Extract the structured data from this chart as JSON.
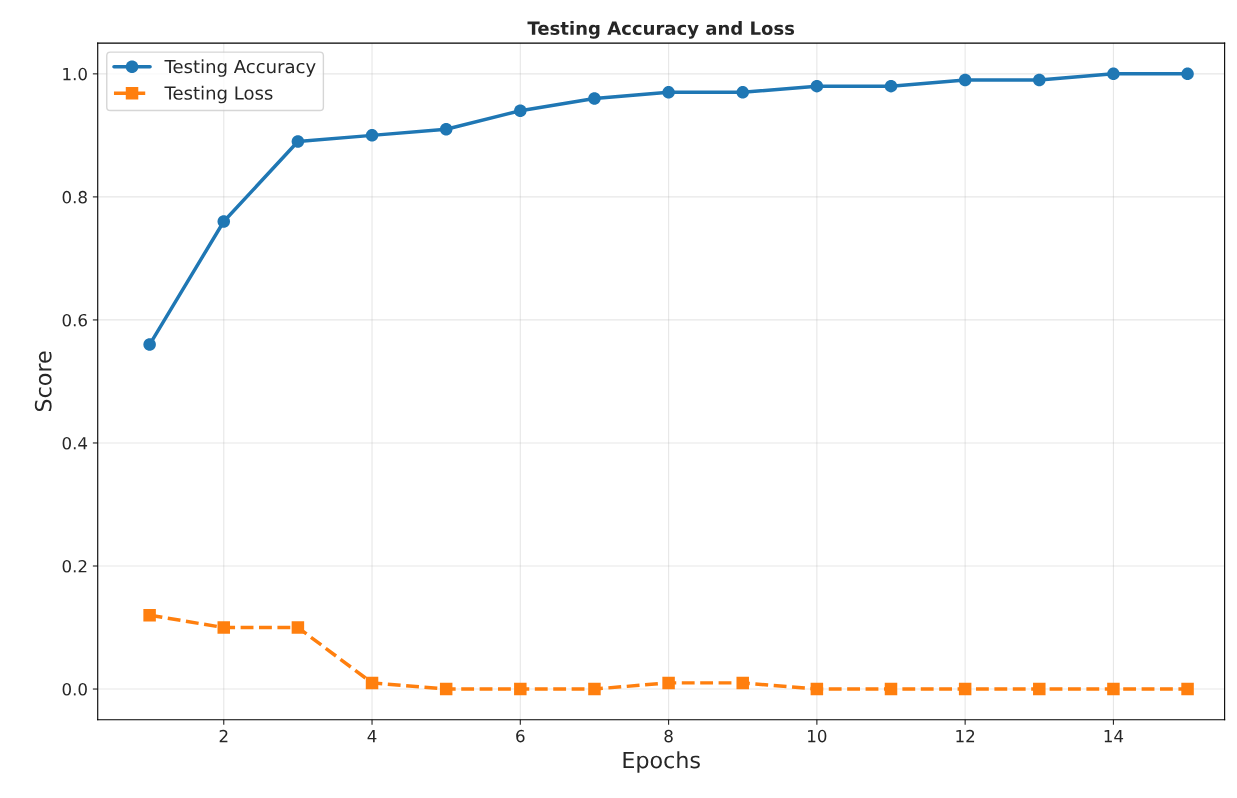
{
  "chart_data": {
    "type": "line",
    "title": "Testing Accuracy and Loss",
    "xlabel": "Epochs",
    "ylabel": "Score",
    "x": [
      1,
      2,
      3,
      4,
      5,
      6,
      7,
      8,
      9,
      10,
      11,
      12,
      13,
      14,
      15
    ],
    "series": [
      {
        "name": "Testing Accuracy",
        "color": "#1f77b4",
        "marker": "circle",
        "line_style": "solid",
        "values": [
          0.56,
          0.76,
          0.89,
          0.9,
          0.91,
          0.94,
          0.96,
          0.97,
          0.97,
          0.98,
          0.98,
          0.99,
          0.99,
          1.0,
          1.0
        ]
      },
      {
        "name": "Testing Loss",
        "color": "#ff7f0e",
        "marker": "square",
        "line_style": "dashed",
        "values": [
          0.12,
          0.1,
          0.1,
          0.01,
          0.0,
          0.0,
          0.0,
          0.01,
          0.01,
          0.0,
          0.0,
          0.0,
          0.0,
          0.0,
          0.0
        ]
      }
    ],
    "xlim": [
      0.3,
      15.5
    ],
    "xticks": [
      2,
      4,
      6,
      8,
      10,
      12,
      14
    ],
    "ylim": [
      -0.05,
      1.05
    ],
    "yticks": [
      {
        "value": 0,
        "label": "0.0"
      },
      {
        "value": 0.2,
        "label": "0.2"
      },
      {
        "value": 0.4,
        "label": "0.4"
      },
      {
        "value": 0.6,
        "label": "0.6"
      },
      {
        "value": 0.8,
        "label": "0.8"
      },
      {
        "value": 1,
        "label": "1.0"
      }
    ],
    "grid": true,
    "legend": "top left"
  }
}
